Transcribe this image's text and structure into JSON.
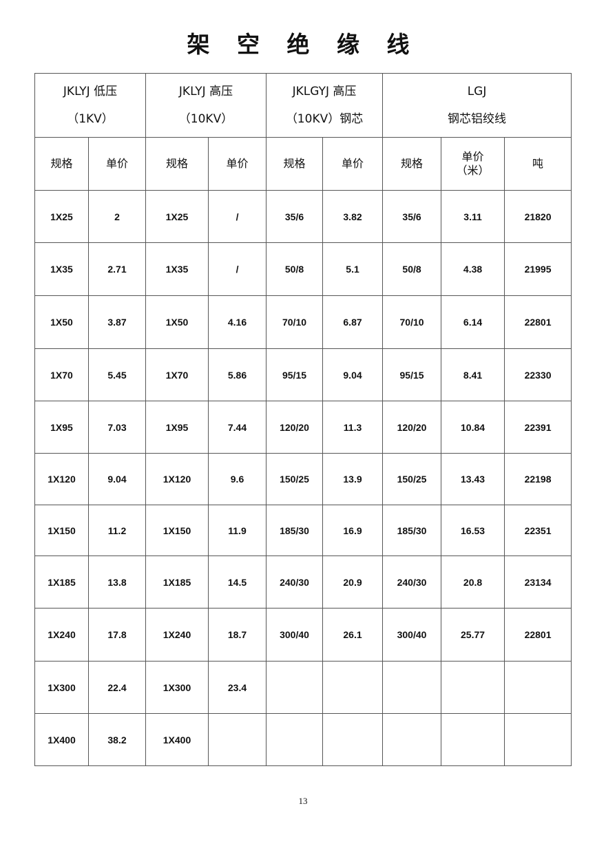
{
  "title": "架 空 绝 缘 线",
  "groups": [
    {
      "line1": "JKLYJ 低压",
      "line2": "（1KV）"
    },
    {
      "line1": "JKLYJ 高压",
      "line2": "（10KV）"
    },
    {
      "line1": "JKLGYJ 高压",
      "line2": "（10KV）钢芯"
    },
    {
      "line1": "LGJ",
      "line2": "钢芯铝绞线"
    }
  ],
  "subheaders": [
    "规格",
    "单价",
    "规格",
    "单价",
    "规格",
    "单价",
    "规格",
    "单价\n（米）",
    "吨"
  ],
  "rows": [
    [
      "1X25",
      "2",
      "1X25",
      "/",
      "35/6",
      "3.82",
      "35/6",
      "3.11",
      "21820"
    ],
    [
      "1X35",
      "2.71",
      "1X35",
      "/",
      "50/8",
      "5.1",
      "50/8",
      "4.38",
      "21995"
    ],
    [
      "1X50",
      "3.87",
      "1X50",
      "4.16",
      "70/10",
      "6.87",
      "70/10",
      "6.14",
      "22801"
    ],
    [
      "1X70",
      "5.45",
      "1X70",
      "5.86",
      "95/15",
      "9.04",
      "95/15",
      "8.41",
      "22330"
    ],
    [
      "1X95",
      "7.03",
      "1X95",
      "7.44",
      "120/20",
      "11.3",
      "120/20",
      "10.84",
      "22391"
    ],
    [
      "1X120",
      "9.04",
      "1X120",
      "9.6",
      "150/25",
      "13.9",
      "150/25",
      "13.43",
      "22198"
    ],
    [
      "1X150",
      "11.2",
      "1X150",
      "11.9",
      "185/30",
      "16.9",
      "185/30",
      "16.53",
      "22351"
    ],
    [
      "1X185",
      "13.8",
      "1X185",
      "14.5",
      "240/30",
      "20.9",
      "240/30",
      "20.8",
      "23134"
    ],
    [
      "1X240",
      "17.8",
      "1X240",
      "18.7",
      "300/40",
      "26.1",
      "300/40",
      "25.77",
      "22801"
    ],
    [
      "1X300",
      "22.4",
      "1X300",
      "23.4",
      "",
      "",
      "",
      "",
      ""
    ],
    [
      "1X400",
      "38.2",
      "1X400",
      "",
      "",
      "",
      "",
      "",
      ""
    ]
  ],
  "page_number": "13"
}
